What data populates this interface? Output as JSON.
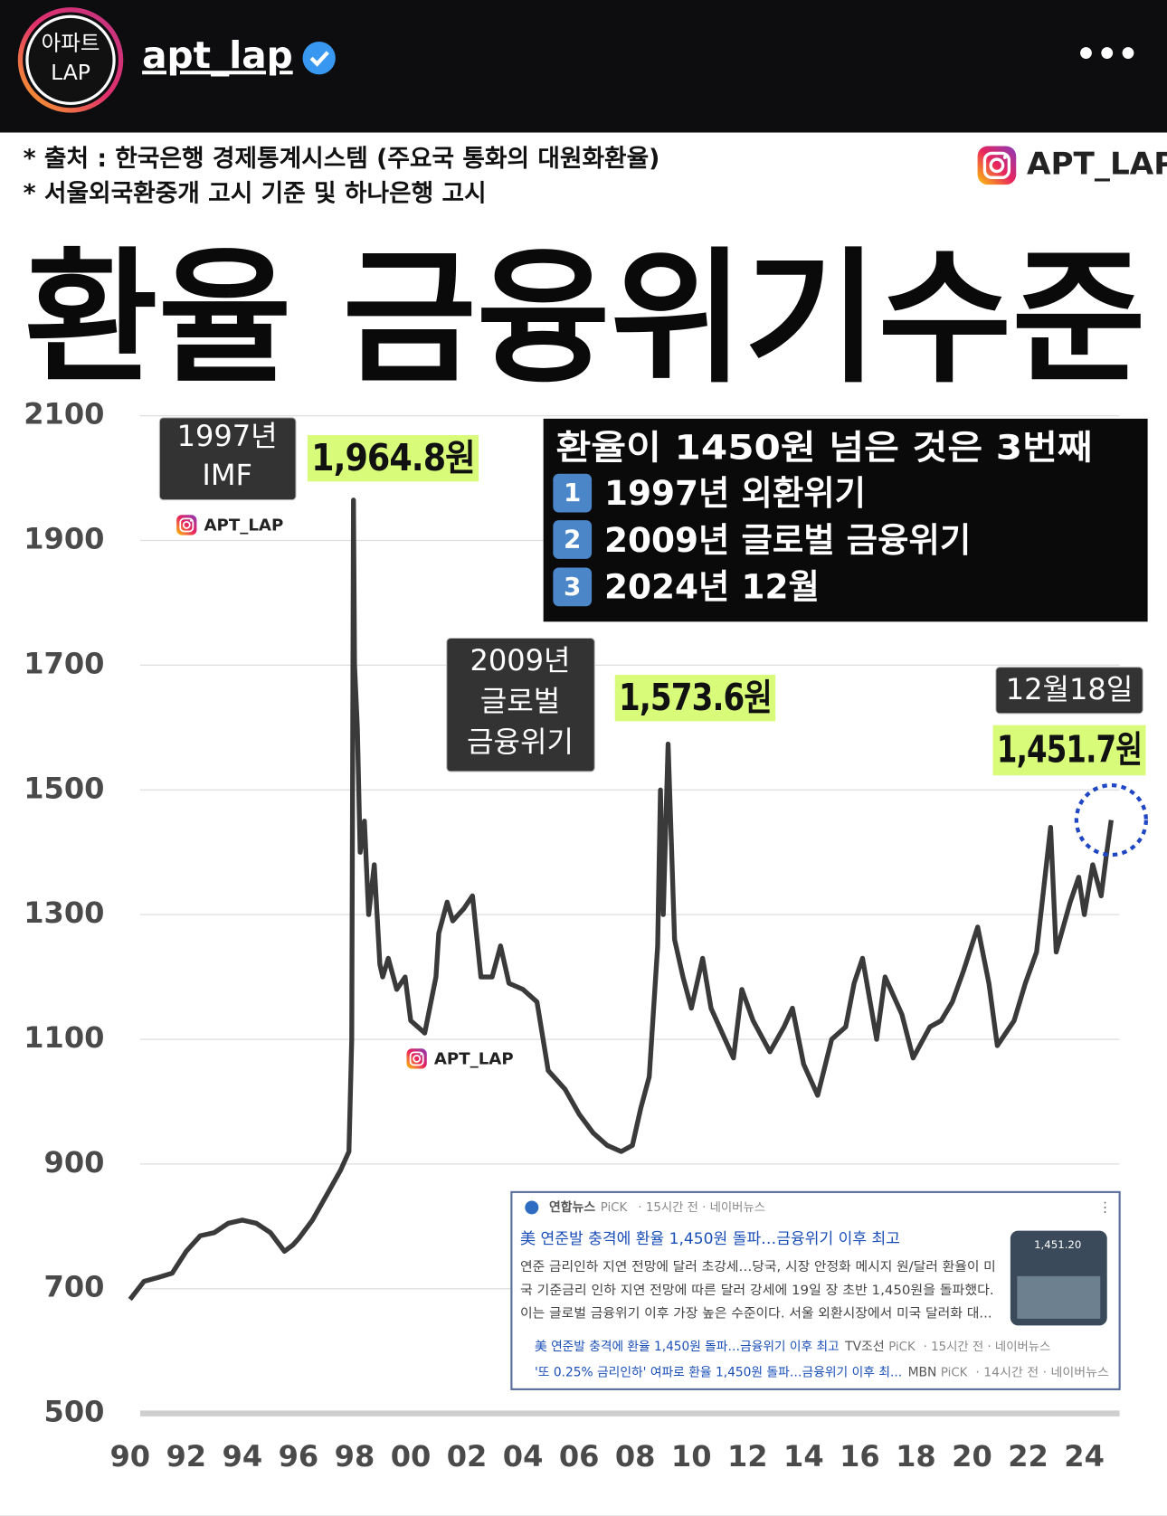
{
  "header": {
    "avatar_lines": [
      "아파트",
      "LAP"
    ],
    "username": "apt_lap",
    "menu": "•••"
  },
  "post": {
    "sources": [
      "* 출처 : 한국은행 경제통계시스템 (주요국 통화의 대원화환율)",
      "* 서울외국환중개 고시 기준 및 하나은행 고시"
    ],
    "watermark": "APT_LAP",
    "title": "환율 금융위기수준"
  },
  "chart_data": {
    "type": "line",
    "x": [
      1990.0,
      1990.5,
      1991.0,
      1991.5,
      1992.0,
      1992.5,
      1993.0,
      1993.5,
      1994.0,
      1994.5,
      1995.0,
      1995.5,
      1995.8,
      1996.0,
      1996.5,
      1997.0,
      1997.5,
      1997.8,
      1997.9,
      1997.96,
      1998.0,
      1998.1,
      1998.2,
      1998.35,
      1998.5,
      1998.7,
      1998.9,
      1999.0,
      1999.2,
      1999.5,
      1999.8,
      2000.0,
      2000.5,
      2000.9,
      2001.0,
      2001.3,
      2001.5,
      2001.9,
      2002.2,
      2002.5,
      2002.9,
      2003.2,
      2003.5,
      2004.0,
      2004.5,
      2004.9,
      2005.5,
      2006.0,
      2006.5,
      2007.0,
      2007.5,
      2007.9,
      2008.2,
      2008.5,
      2008.8,
      2008.9,
      2009.0,
      2009.17,
      2009.4,
      2009.7,
      2010.0,
      2010.4,
      2010.7,
      2011.0,
      2011.5,
      2011.8,
      2012.2,
      2012.8,
      2013.3,
      2013.6,
      2014.0,
      2014.5,
      2015.0,
      2015.5,
      2015.8,
      2016.1,
      2016.6,
      2016.9,
      2017.5,
      2017.9,
      2018.5,
      2018.9,
      2019.3,
      2019.7,
      2020.2,
      2020.6,
      2020.9,
      2021.5,
      2021.9,
      2022.3,
      2022.8,
      2023.0,
      2023.5,
      2023.8,
      2024.0,
      2024.3,
      2024.6,
      2024.8,
      2024.96
    ],
    "series": [
      {
        "color": "#3a3a3a",
        "values": [
          683,
          712,
          718,
          725,
          760,
          785,
          790,
          805,
          810,
          805,
          790,
          760,
          770,
          780,
          810,
          850,
          890,
          920,
          1100,
          1964.8,
          1700,
          1600,
          1400,
          1450,
          1300,
          1380,
          1220,
          1200,
          1230,
          1180,
          1200,
          1130,
          1110,
          1200,
          1270,
          1320,
          1290,
          1310,
          1330,
          1200,
          1200,
          1250,
          1190,
          1180,
          1160,
          1050,
          1020,
          980,
          950,
          930,
          920,
          930,
          990,
          1040,
          1250,
          1500,
          1300,
          1573.6,
          1260,
          1200,
          1150,
          1230,
          1150,
          1120,
          1070,
          1180,
          1130,
          1080,
          1120,
          1150,
          1060,
          1010,
          1100,
          1120,
          1190,
          1230,
          1100,
          1200,
          1140,
          1070,
          1120,
          1130,
          1160,
          1210,
          1280,
          1190,
          1090,
          1130,
          1190,
          1240,
          1440,
          1240,
          1320,
          1360,
          1300,
          1380,
          1330,
          1400,
          1451.7
        ],
        "value_labels": [
          null,
          null,
          null,
          null,
          null,
          null,
          null,
          null,
          null,
          null,
          null,
          null,
          null,
          null,
          null,
          null,
          null,
          null,
          null,
          "1,964.8원",
          null,
          null,
          null,
          null,
          null,
          null,
          null,
          null,
          null,
          null,
          null,
          null,
          null,
          null,
          null,
          null,
          null,
          null,
          null,
          null,
          null,
          null,
          null,
          null,
          null,
          null,
          null,
          null,
          null,
          null,
          null,
          null,
          null,
          null,
          null,
          null,
          null,
          "1,573.6원",
          null,
          null,
          null,
          null,
          null,
          null,
          null,
          null,
          null,
          null,
          null,
          null,
          null,
          null,
          null,
          null,
          null,
          null,
          null,
          null,
          null,
          null,
          null,
          null,
          null,
          null,
          null,
          null,
          null,
          null,
          null,
          null,
          null,
          null,
          null,
          null,
          null,
          null,
          null,
          null,
          "1,451.7원"
        ]
      }
    ],
    "xlim": [
      1989.5,
      2025.5
    ],
    "xticks": [
      {
        "value": 1990,
        "label": "90"
      },
      {
        "value": 1992,
        "label": "92"
      },
      {
        "value": 1994,
        "label": "94"
      },
      {
        "value": 1996,
        "label": "96"
      },
      {
        "value": 1998,
        "label": "98"
      },
      {
        "value": 2000,
        "label": "00"
      },
      {
        "value": 2002,
        "label": "02"
      },
      {
        "value": 2004,
        "label": "04"
      },
      {
        "value": 2006,
        "label": "06"
      },
      {
        "value": 2008,
        "label": "08"
      },
      {
        "value": 2010,
        "label": "10"
      },
      {
        "value": 2012,
        "label": "12"
      },
      {
        "value": 2014,
        "label": "14"
      },
      {
        "value": 2016,
        "label": "16"
      },
      {
        "value": 2018,
        "label": "18"
      },
      {
        "value": 2020,
        "label": "20"
      },
      {
        "value": 2022,
        "label": "22"
      },
      {
        "value": 2024,
        "label": "24"
      }
    ],
    "ylim": [
      500,
      2100
    ],
    "yticks": [
      500,
      700,
      900,
      1100,
      1300,
      1500,
      1700,
      1900,
      2100
    ],
    "grid": true,
    "annotations": [
      {
        "lines": [
          "1997년",
          "IMF"
        ]
      },
      {
        "lines": [
          "2009년",
          "글로벌",
          "금융위기"
        ]
      },
      {
        "lines": [
          "12월18일"
        ]
      }
    ],
    "info_box": {
      "title": "환율이 1450원 넘은 것은 3번째",
      "items": [
        {
          "number": "1",
          "text": "1997년 외환위기"
        },
        {
          "number": "2",
          "text": "2009년 글로벌 금융위기"
        },
        {
          "number": "3",
          "text": "2024년 12월"
        }
      ]
    }
  },
  "news": {
    "source": "연합뉴스",
    "tag": "PiCK",
    "meta": "· 15시간 전 · 네이버뉴스",
    "headline": "美 연준발 충격에 환율 1,450원 돌파…금융위기 이후 최고",
    "snippet": [
      "연준 금리인하 지연 전망에 달러 초강세…당국, 시장 안정화 메시지 원/달러 환율이 미",
      "국 기준금리 인하 지연 전망에 따른 달러 강세에 19일 장 초반 1,450원을 돌파했다.",
      "이는 글로벌 금융위기 이후 가장 높은 수준이다. 서울 외환시장에서 미국 달러화 대..."
    ],
    "thumbnail_text": "1,451.20",
    "related": [
      {
        "title": "美 연준발 충격에 환율 1,450원 돌파…금융위기 이후 최고",
        "source": "TV조선",
        "tag": "PiCK",
        "meta": "· 15시간 전 · 네이버뉴스"
      },
      {
        "title": "'또 0.25% 금리인하' 여파로 환율 1,450원 돌파…금융위기 이후 최...",
        "source": "MBN",
        "tag": "PiCK",
        "meta": "· 14시간 전 · 네이버뉴스"
      }
    ]
  }
}
